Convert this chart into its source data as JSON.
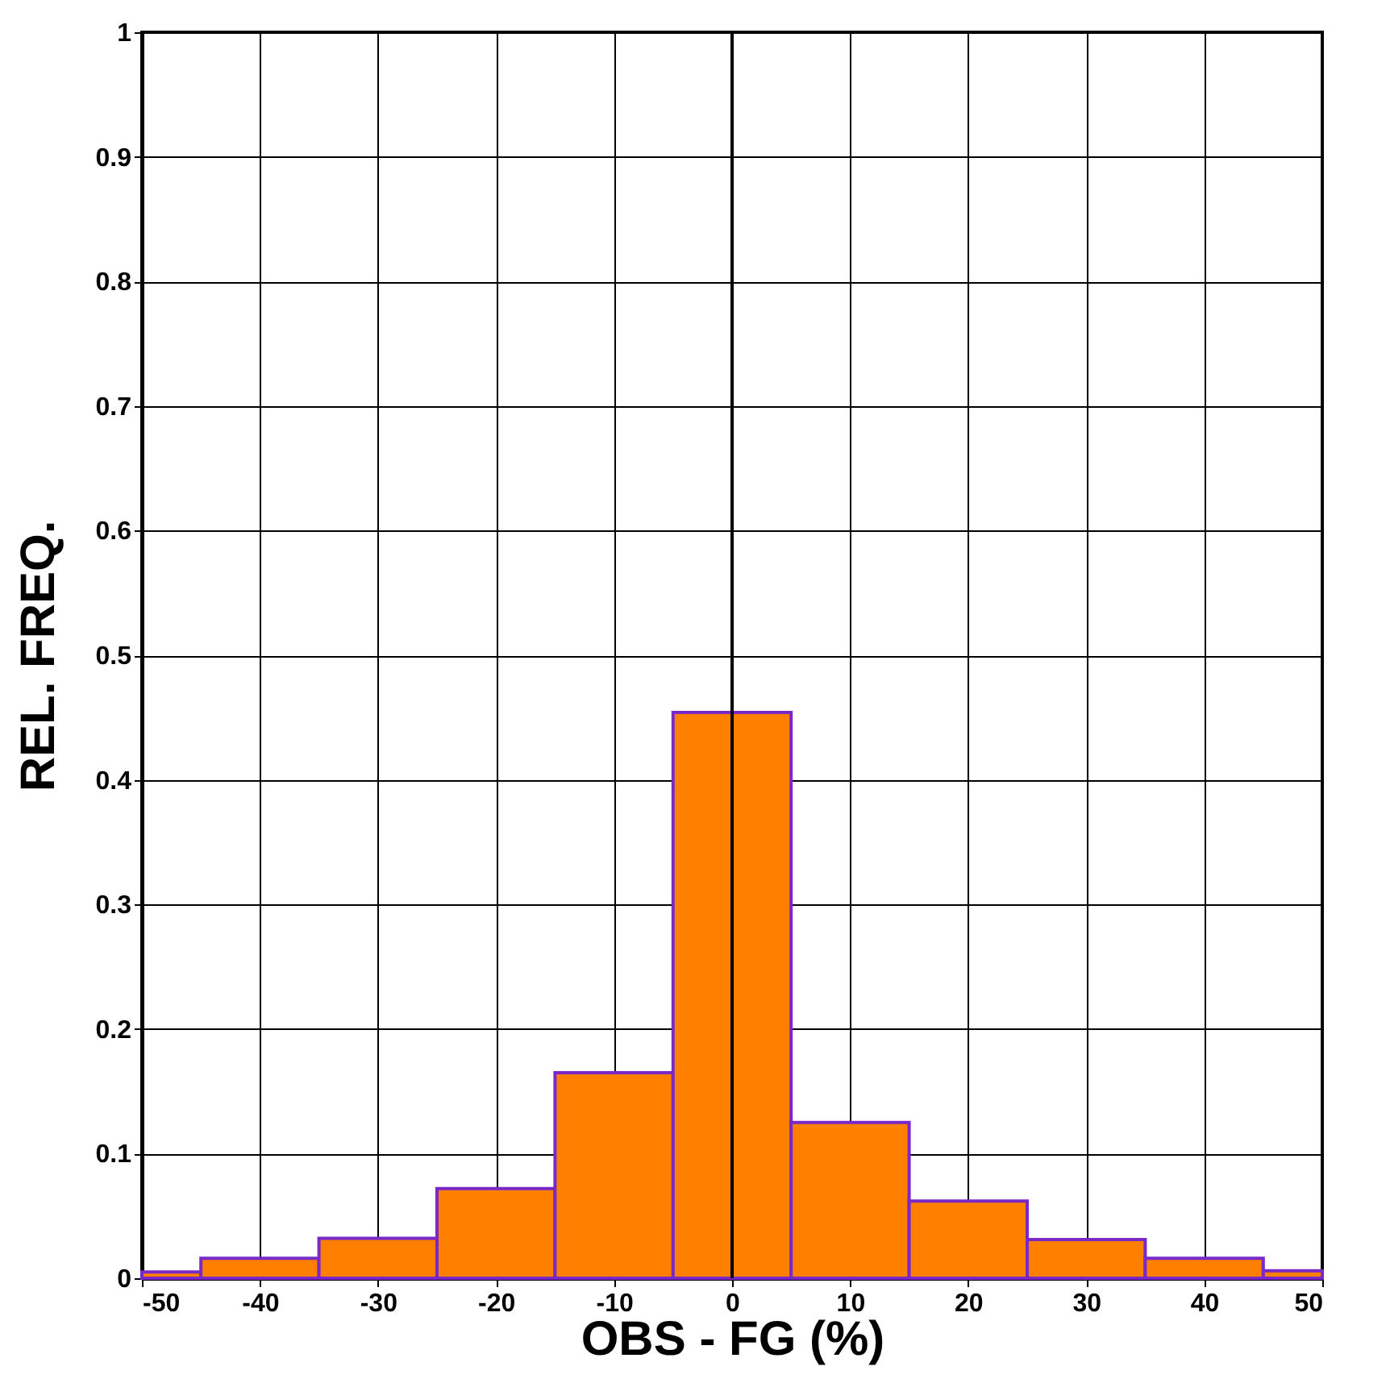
{
  "chart_data": {
    "type": "histogram",
    "xlabel": "OBS - FG (%)",
    "ylabel": "REL. FREQ.",
    "bins": [
      -50,
      -45,
      -35,
      -25,
      -15,
      -5,
      5,
      15,
      25,
      35,
      45,
      50
    ],
    "values": [
      0.005,
      0.016,
      0.032,
      0.072,
      0.165,
      0.454,
      0.125,
      0.062,
      0.031,
      0.016,
      0.006
    ],
    "color": "#ff8000",
    "xlim": [
      -50,
      50
    ],
    "xticks": [
      -50,
      -40,
      -30,
      -20,
      -10,
      0,
      10,
      20,
      30,
      40,
      50
    ],
    "ylim": [
      0,
      1
    ],
    "yticks": [
      0,
      0.1,
      0.2,
      0.3,
      0.4,
      0.5,
      0.6,
      0.7,
      0.8,
      0.9,
      1
    ],
    "ref_lines": [
      {
        "axis": "x",
        "value": 0,
        "color": "#000000"
      }
    ],
    "grid": true
  }
}
